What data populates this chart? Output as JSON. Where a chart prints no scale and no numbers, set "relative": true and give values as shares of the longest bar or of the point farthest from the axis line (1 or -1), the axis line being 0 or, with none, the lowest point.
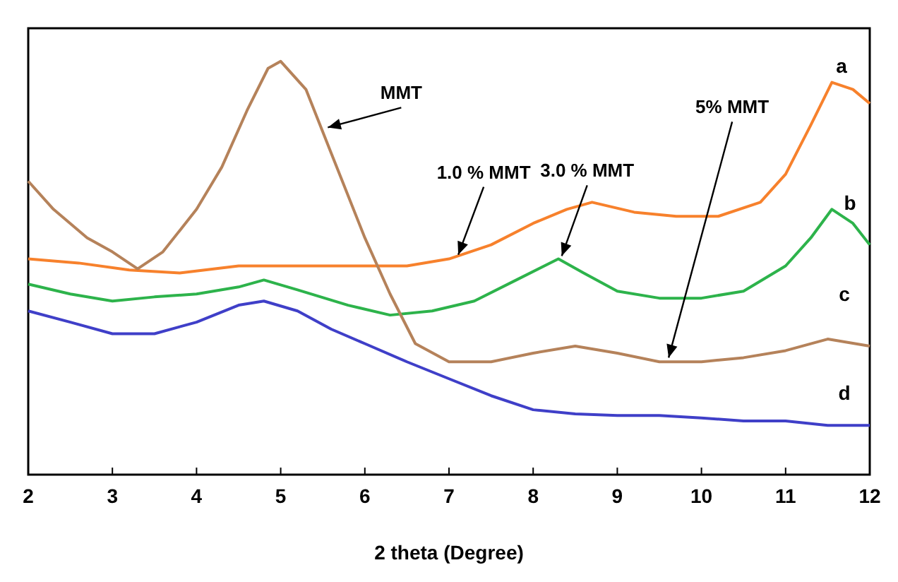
{
  "chart_data": {
    "type": "line",
    "relative": true,
    "xlabel": "2 theta (Degree)",
    "xlim": [
      2,
      12
    ],
    "xticks": [
      2,
      3,
      4,
      5,
      6,
      7,
      8,
      9,
      10,
      11,
      12
    ],
    "grid": false,
    "marker": "none",
    "line_style": "solid",
    "series": [
      {
        "name": "a",
        "color": "#f7812c",
        "x": [
          2.0,
          2.6,
          3.2,
          3.8,
          4.5,
          5.0,
          5.8,
          6.5,
          7.0,
          7.5,
          8.0,
          8.4,
          8.7,
          9.2,
          9.7,
          10.2,
          10.7,
          11.0,
          11.3,
          11.55,
          11.8,
          12.0
        ],
        "values": [
          0.522,
          0.512,
          0.495,
          0.488,
          0.505,
          0.505,
          0.505,
          0.505,
          0.522,
          0.556,
          0.608,
          0.642,
          0.659,
          0.635,
          0.625,
          0.625,
          0.659,
          0.727,
          0.846,
          0.949,
          0.932,
          0.898
        ]
      },
      {
        "name": "b",
        "color": "#2db34b",
        "x": [
          2.0,
          2.5,
          3.0,
          3.5,
          4.0,
          4.5,
          4.8,
          5.2,
          5.8,
          6.3,
          6.8,
          7.3,
          7.8,
          8.3,
          8.6,
          9.0,
          9.5,
          10.0,
          10.5,
          11.0,
          11.3,
          11.55,
          11.8,
          12.0
        ],
        "values": [
          0.461,
          0.437,
          0.42,
          0.43,
          0.437,
          0.454,
          0.471,
          0.447,
          0.41,
          0.386,
          0.396,
          0.42,
          0.471,
          0.522,
          0.488,
          0.444,
          0.427,
          0.427,
          0.444,
          0.505,
          0.573,
          0.642,
          0.608,
          0.556
        ]
      },
      {
        "name": "c",
        "color": "#b5825a",
        "x": [
          2.0,
          2.3,
          2.7,
          3.0,
          3.3,
          3.6,
          4.0,
          4.3,
          4.6,
          4.85,
          5.0,
          5.3,
          5.6,
          6.0,
          6.3,
          6.6,
          7.0,
          7.5,
          8.0,
          8.5,
          9.0,
          9.5,
          10.0,
          10.5,
          11.0,
          11.5,
          12.0
        ],
        "values": [
          0.71,
          0.642,
          0.573,
          0.539,
          0.498,
          0.539,
          0.642,
          0.744,
          0.881,
          0.983,
          1.0,
          0.932,
          0.778,
          0.573,
          0.437,
          0.317,
          0.273,
          0.273,
          0.294,
          0.311,
          0.294,
          0.273,
          0.273,
          0.283,
          0.3,
          0.328,
          0.311
        ]
      },
      {
        "name": "d",
        "color": "#3f3fc8",
        "x": [
          2.0,
          2.5,
          3.0,
          3.5,
          4.0,
          4.5,
          4.8,
          5.2,
          5.6,
          6.0,
          6.5,
          7.0,
          7.5,
          8.0,
          8.5,
          9.0,
          9.5,
          10.0,
          10.5,
          11.0,
          11.5,
          12.0
        ],
        "values": [
          0.396,
          0.369,
          0.341,
          0.341,
          0.369,
          0.41,
          0.42,
          0.396,
          0.352,
          0.317,
          0.273,
          0.232,
          0.191,
          0.157,
          0.147,
          0.143,
          0.143,
          0.137,
          0.13,
          0.13,
          0.119,
          0.119
        ]
      }
    ],
    "annotations": [
      {
        "text": "MMT",
        "x": 5.56,
        "y": 0.84
      },
      {
        "text": "1.0 % MMT",
        "x": 7.11,
        "y": 0.532
      },
      {
        "text": "3.0 % MMT",
        "x": 8.34,
        "y": 0.529
      },
      {
        "text": "5% MMT",
        "x": 9.61,
        "y": 0.283
      }
    ]
  }
}
